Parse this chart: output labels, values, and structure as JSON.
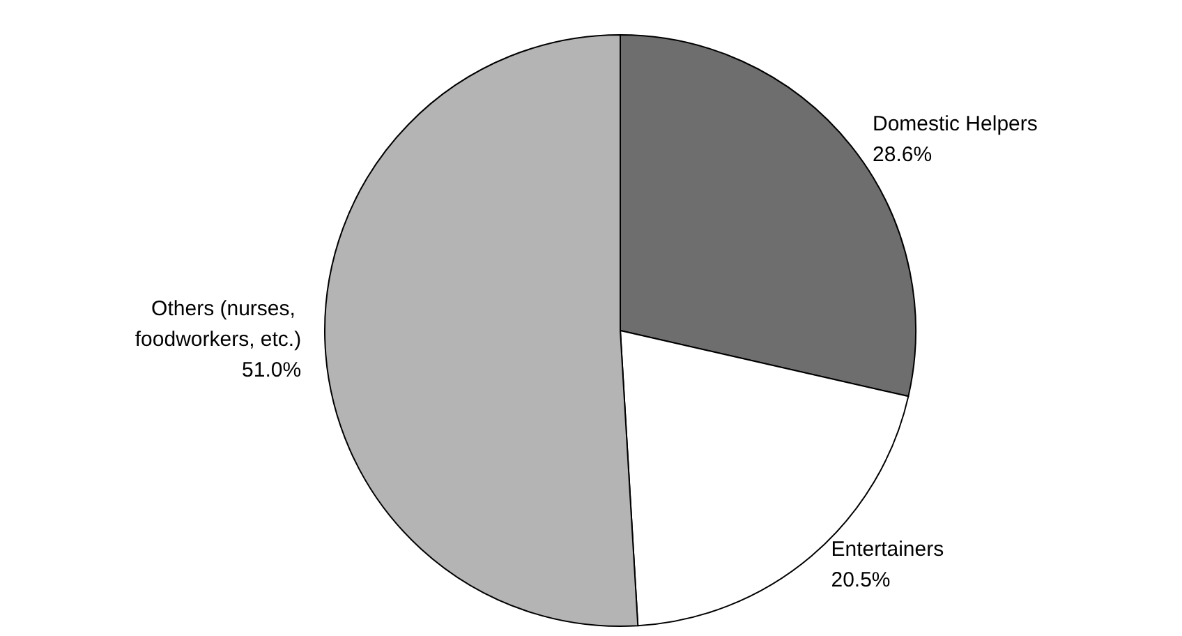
{
  "chart_data": {
    "type": "pie",
    "categories": [
      "Domestic Helpers",
      "Entertainers",
      "Others (nurses, foodworkers, etc.)"
    ],
    "values": [
      28.6,
      20.5,
      51.0
    ],
    "value_labels": [
      "28.6%",
      "20.5%",
      "51.0%"
    ],
    "colors": [
      "#6e6e6e",
      "#ffffff",
      "#b4b4b4"
    ]
  }
}
